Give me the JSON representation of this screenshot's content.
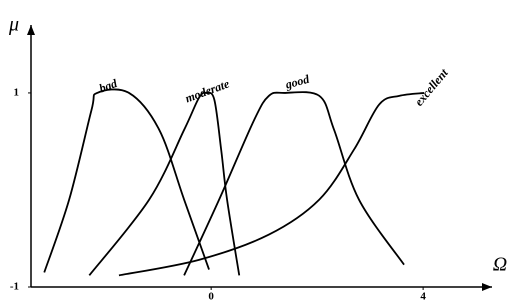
{
  "chart_data": {
    "type": "line",
    "x_label": "Ω",
    "y_label": "μ",
    "xlim": [
      -3.4,
      5.3
    ],
    "ylim": [
      -1,
      1.7
    ],
    "xticks": [
      0,
      4
    ],
    "yticks": [
      -1,
      1
    ],
    "series": [
      {
        "name": "bad",
        "color": "#000000",
        "x": [
          -3.15,
          -2.68,
          -2.26,
          -2.15,
          -1.55,
          -0.98,
          -0.51,
          -0.04
        ],
        "values": [
          -0.85,
          -0.1,
          0.82,
          1.0,
          1.0,
          0.62,
          -0.1,
          -0.82
        ]
      },
      {
        "name": "moderate",
        "color": "#000000",
        "x": [
          -2.3,
          -1.17,
          -0.51,
          -0.23,
          -0.09,
          0.06,
          0.19,
          0.3,
          0.53
        ],
        "values": [
          -0.88,
          -0.1,
          0.62,
          0.95,
          1.0,
          0.93,
          0.41,
          -0.1,
          -0.88
        ]
      },
      {
        "name": "good",
        "color": "#000000",
        "x": [
          -0.51,
          0.15,
          0.81,
          1.09,
          1.38,
          2.04,
          2.32,
          2.79,
          3.64
        ],
        "values": [
          -0.88,
          -0.1,
          0.72,
          0.97,
          1.0,
          0.97,
          0.62,
          -0.1,
          -0.77
        ]
      },
      {
        "name": "excellent",
        "color": "#000000",
        "x": [
          -1.74,
          -0.23,
          1.09,
          2.04,
          2.7,
          3.17,
          3.55,
          4.02
        ],
        "values": [
          -0.88,
          -0.72,
          -0.46,
          -0.1,
          0.42,
          0.88,
          0.97,
          1.0
        ]
      }
    ]
  }
}
